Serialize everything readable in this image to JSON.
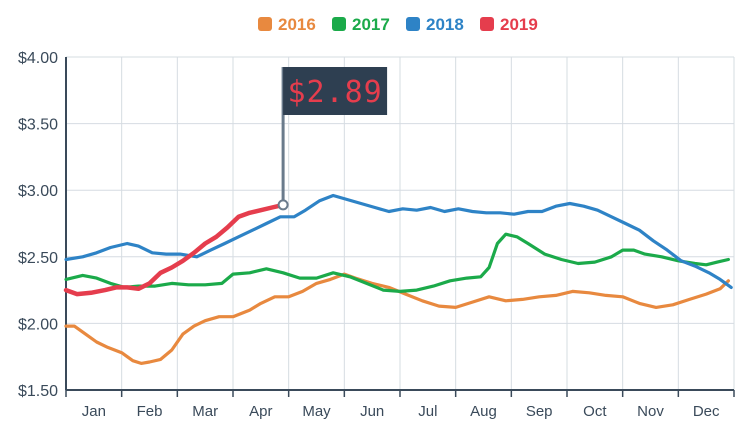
{
  "chart_data": {
    "type": "line",
    "title": "",
    "xlabel": "",
    "ylabel": "",
    "ylim": [
      1.5,
      4.0
    ],
    "y_ticks": [
      "$1.50",
      "$2.00",
      "$2.50",
      "$3.00",
      "$3.50",
      "$4.00"
    ],
    "y_tick_values": [
      1.5,
      2.0,
      2.5,
      3.0,
      3.5,
      4.0
    ],
    "categories": [
      "Jan",
      "Feb",
      "Mar",
      "Apr",
      "May",
      "Jun",
      "Jul",
      "Aug",
      "Sep",
      "Oct",
      "Nov",
      "Dec"
    ],
    "x_unit": "months (0 = start of Jan, 12 = end of Dec)",
    "grid": true,
    "legend_position": "top-center",
    "series": [
      {
        "name": "2016",
        "color": "#E8893F",
        "x": [
          0,
          0.15,
          0.35,
          0.55,
          0.75,
          1.0,
          1.2,
          1.35,
          1.5,
          1.7,
          1.9,
          2.1,
          2.3,
          2.5,
          2.75,
          3.0,
          3.3,
          3.5,
          3.75,
          4.0,
          4.25,
          4.5,
          4.75,
          5.0,
          5.2,
          5.5,
          5.8,
          6.1,
          6.4,
          6.7,
          7.0,
          7.3,
          7.6,
          7.9,
          8.2,
          8.5,
          8.8,
          9.1,
          9.4,
          9.7,
          10.0,
          10.3,
          10.6,
          10.9,
          11.2,
          11.5,
          11.75,
          11.9
        ],
        "values": [
          1.98,
          1.98,
          1.92,
          1.86,
          1.82,
          1.78,
          1.72,
          1.7,
          1.71,
          1.73,
          1.8,
          1.92,
          1.98,
          2.02,
          2.05,
          2.05,
          2.1,
          2.15,
          2.2,
          2.2,
          2.24,
          2.3,
          2.33,
          2.37,
          2.34,
          2.3,
          2.27,
          2.22,
          2.17,
          2.13,
          2.12,
          2.16,
          2.2,
          2.17,
          2.18,
          2.2,
          2.21,
          2.24,
          2.23,
          2.21,
          2.2,
          2.15,
          2.12,
          2.14,
          2.18,
          2.22,
          2.26,
          2.32
        ]
      },
      {
        "name": "2017",
        "color": "#1BAA4A",
        "x": [
          0,
          0.3,
          0.55,
          0.8,
          1.05,
          1.3,
          1.6,
          1.9,
          2.2,
          2.5,
          2.8,
          3.0,
          3.3,
          3.6,
          3.9,
          4.2,
          4.5,
          4.8,
          5.1,
          5.4,
          5.7,
          6.0,
          6.3,
          6.6,
          6.9,
          7.2,
          7.45,
          7.6,
          7.75,
          7.9,
          8.1,
          8.3,
          8.6,
          8.9,
          9.2,
          9.5,
          9.8,
          10.0,
          10.2,
          10.4,
          10.7,
          11.0,
          11.3,
          11.5,
          11.7,
          11.9
        ],
        "values": [
          2.33,
          2.36,
          2.34,
          2.3,
          2.27,
          2.28,
          2.28,
          2.3,
          2.29,
          2.29,
          2.3,
          2.37,
          2.38,
          2.41,
          2.38,
          2.34,
          2.34,
          2.38,
          2.35,
          2.3,
          2.25,
          2.24,
          2.25,
          2.28,
          2.32,
          2.34,
          2.35,
          2.42,
          2.6,
          2.67,
          2.65,
          2.6,
          2.52,
          2.48,
          2.45,
          2.46,
          2.5,
          2.55,
          2.55,
          2.52,
          2.5,
          2.47,
          2.45,
          2.44,
          2.46,
          2.48
        ]
      },
      {
        "name": "2018",
        "color": "#2E83C6",
        "x": [
          0,
          0.3,
          0.55,
          0.8,
          1.1,
          1.3,
          1.55,
          1.8,
          2.05,
          2.35,
          2.6,
          2.85,
          3.1,
          3.35,
          3.6,
          3.85,
          4.1,
          4.3,
          4.55,
          4.8,
          5.05,
          5.3,
          5.55,
          5.8,
          6.05,
          6.3,
          6.55,
          6.8,
          7.05,
          7.3,
          7.55,
          7.8,
          8.05,
          8.3,
          8.55,
          8.8,
          9.05,
          9.3,
          9.55,
          9.8,
          10.05,
          10.3,
          10.55,
          10.8,
          11.05,
          11.3,
          11.55,
          11.75,
          11.95
        ],
        "values": [
          2.48,
          2.5,
          2.53,
          2.57,
          2.6,
          2.58,
          2.53,
          2.52,
          2.52,
          2.5,
          2.55,
          2.6,
          2.65,
          2.7,
          2.75,
          2.8,
          2.8,
          2.85,
          2.92,
          2.96,
          2.93,
          2.9,
          2.87,
          2.84,
          2.86,
          2.85,
          2.87,
          2.84,
          2.86,
          2.84,
          2.83,
          2.83,
          2.82,
          2.84,
          2.84,
          2.88,
          2.9,
          2.88,
          2.85,
          2.8,
          2.75,
          2.7,
          2.62,
          2.55,
          2.47,
          2.43,
          2.38,
          2.33,
          2.27
        ]
      },
      {
        "name": "2019",
        "color": "#E53D4D",
        "x": [
          0,
          0.2,
          0.45,
          0.7,
          0.9,
          1.1,
          1.3,
          1.5,
          1.7,
          1.9,
          2.1,
          2.3,
          2.5,
          2.7,
          2.9,
          3.1,
          3.3,
          3.5,
          3.7,
          3.9
        ],
        "values": [
          2.25,
          2.22,
          2.23,
          2.25,
          2.27,
          2.27,
          2.26,
          2.3,
          2.38,
          2.42,
          2.47,
          2.53,
          2.6,
          2.65,
          2.72,
          2.8,
          2.83,
          2.85,
          2.87,
          2.89
        ]
      }
    ],
    "annotation": {
      "text": "$2.89",
      "series": "2019",
      "x": 3.9,
      "value": 2.89
    }
  },
  "legend": [
    {
      "label": "2016",
      "color": "#E8893F"
    },
    {
      "label": "2017",
      "color": "#1BAA4A"
    },
    {
      "label": "2018",
      "color": "#2E83C6"
    },
    {
      "label": "2019",
      "color": "#E53D4D"
    }
  ],
  "colors": {
    "axis": "#3a4a5a",
    "grid": "#d6dce2",
    "flag_bg": "#2e3f51",
    "flag_text": "#e53d4d",
    "flag_pole": "#6a7b8c"
  }
}
